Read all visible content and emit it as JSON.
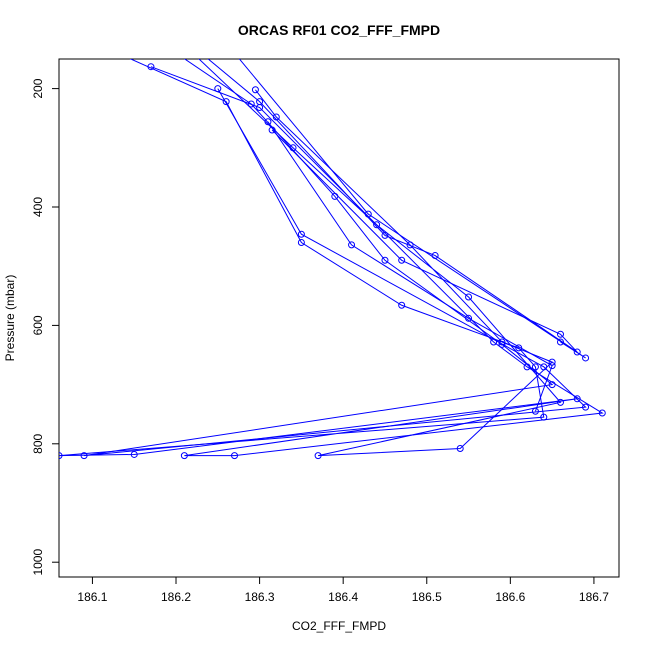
{
  "chart_data": {
    "type": "line",
    "title": "ORCAS RF01 CO2_FFF_FMPD",
    "xlabel": "CO2_FFF_FMPD",
    "ylabel": "Pressure (mbar)",
    "xlim": [
      186.06,
      186.73
    ],
    "ylim": [
      1025,
      150
    ],
    "y_reversed": true,
    "grid": false,
    "legend": "none",
    "x_ticks": [
      186.1,
      186.2,
      186.3,
      186.4,
      186.5,
      186.6,
      186.7
    ],
    "y_ticks": [
      200,
      400,
      600,
      800,
      1000
    ],
    "line_color": "#0000ff",
    "series": [
      {
        "points": [
          [
            186.17,
            163
          ],
          [
            186.3,
            232
          ],
          [
            186.58,
            628
          ],
          [
            186.62,
            670
          ],
          [
            186.71,
            748
          ],
          [
            186.27,
            820
          ],
          [
            186.21,
            820
          ],
          [
            186.68,
            724
          ],
          [
            186.15,
            818
          ],
          [
            186.06,
            820
          ],
          [
            186.64,
            755
          ],
          [
            186.63,
            670
          ],
          [
            186.61,
            638
          ],
          [
            186.47,
            566
          ],
          [
            186.35,
            460
          ],
          [
            186.26,
            222
          ],
          [
            186.13,
            140
          ]
        ]
      },
      {
        "points": [
          [
            186.25,
            200
          ],
          [
            186.35,
            446
          ],
          [
            186.64,
            670
          ],
          [
            186.69,
            738
          ],
          [
            186.09,
            820
          ],
          [
            186.65,
            700
          ],
          [
            186.59,
            632
          ],
          [
            186.45,
            490
          ],
          [
            186.39,
            382
          ],
          [
            186.29,
            226
          ],
          [
            186.2,
            140
          ]
        ]
      },
      {
        "points": [
          [
            186.295,
            202
          ],
          [
            186.32,
            248
          ],
          [
            186.48,
            464
          ],
          [
            186.59,
            628
          ],
          [
            186.65,
            662
          ],
          [
            186.54,
            808
          ],
          [
            186.37,
            820
          ],
          [
            186.66,
            730
          ],
          [
            186.55,
            552
          ],
          [
            186.44,
            430
          ],
          [
            186.34,
            300
          ],
          [
            186.22,
            140
          ]
        ]
      },
      {
        "points": [
          [
            186.31,
            256
          ],
          [
            186.41,
            464
          ],
          [
            186.55,
            588
          ],
          [
            186.65,
            668
          ],
          [
            186.63,
            745
          ]
        ]
      },
      {
        "points": [
          [
            186.315,
            270
          ],
          [
            186.47,
            490
          ],
          [
            186.66,
            615
          ],
          [
            186.68,
            645
          ],
          [
            186.51,
            482
          ],
          [
            186.45,
            448
          ],
          [
            186.3,
            222
          ],
          [
            186.23,
            140
          ]
        ]
      },
      {
        "points": [
          [
            186.66,
            628
          ],
          [
            186.69,
            655
          ],
          [
            186.43,
            412
          ],
          [
            186.27,
            140
          ]
        ]
      }
    ]
  }
}
